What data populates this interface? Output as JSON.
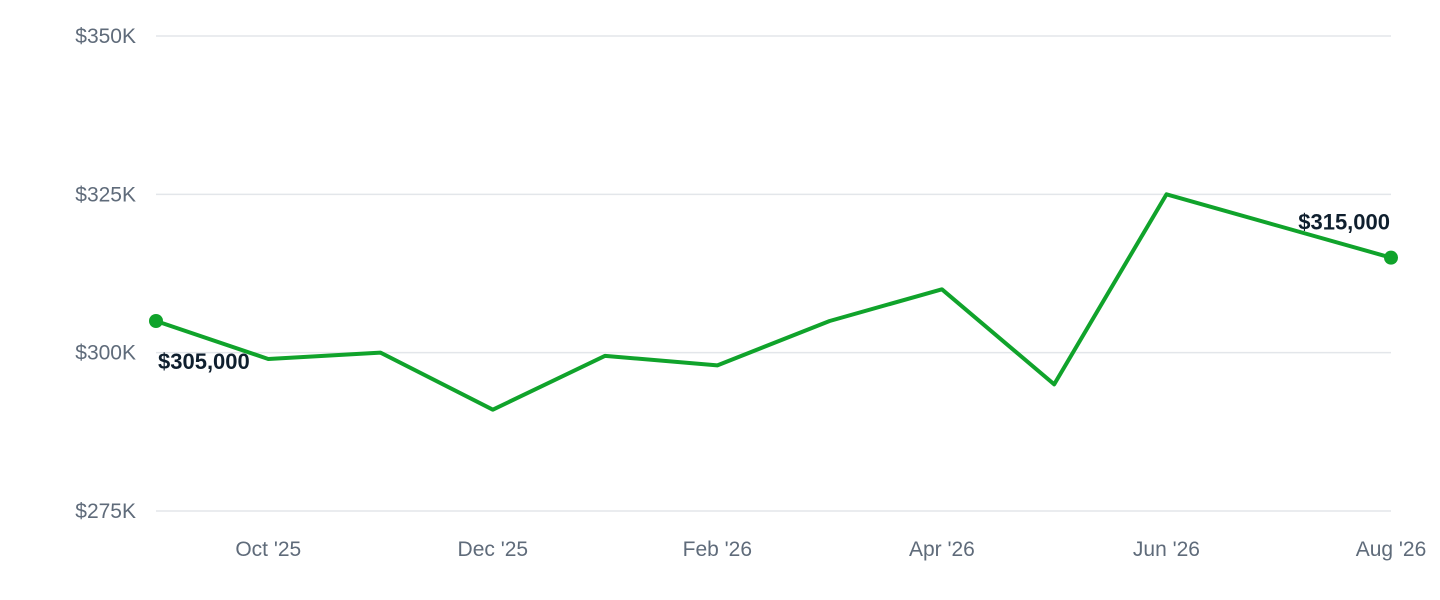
{
  "chart_data": {
    "type": "line",
    "title": "",
    "xlabel": "",
    "ylabel": "",
    "x": [
      "Sep '25",
      "Oct '25",
      "Nov '25",
      "Dec '25",
      "Jan '26",
      "Feb '26",
      "Mar '26",
      "Apr '26",
      "May '26",
      "Jun '26",
      "Jul '26",
      "Aug '26"
    ],
    "x_tick_labels": [
      "Oct '25",
      "Dec '25",
      "Feb '26",
      "Apr '26",
      "Jun '26",
      "Aug '26"
    ],
    "y_ticks": [
      275000,
      300000,
      325000,
      350000
    ],
    "y_tick_labels": [
      "$275K",
      "$300K",
      "$325K",
      "$350K"
    ],
    "ylim": [
      275000,
      350000
    ],
    "grid": true,
    "series": [
      {
        "values": [
          305000,
          299000,
          300000,
          291000,
          299500,
          298000,
          305000,
          310000,
          295000,
          325000,
          320000,
          315000
        ]
      }
    ],
    "annotations": [
      {
        "index": 0,
        "text": "$305,000"
      },
      {
        "index": 11,
        "text": "$315,000"
      }
    ],
    "colors": {
      "line": "#10a32b",
      "grid": "#e3e6ea"
    }
  }
}
